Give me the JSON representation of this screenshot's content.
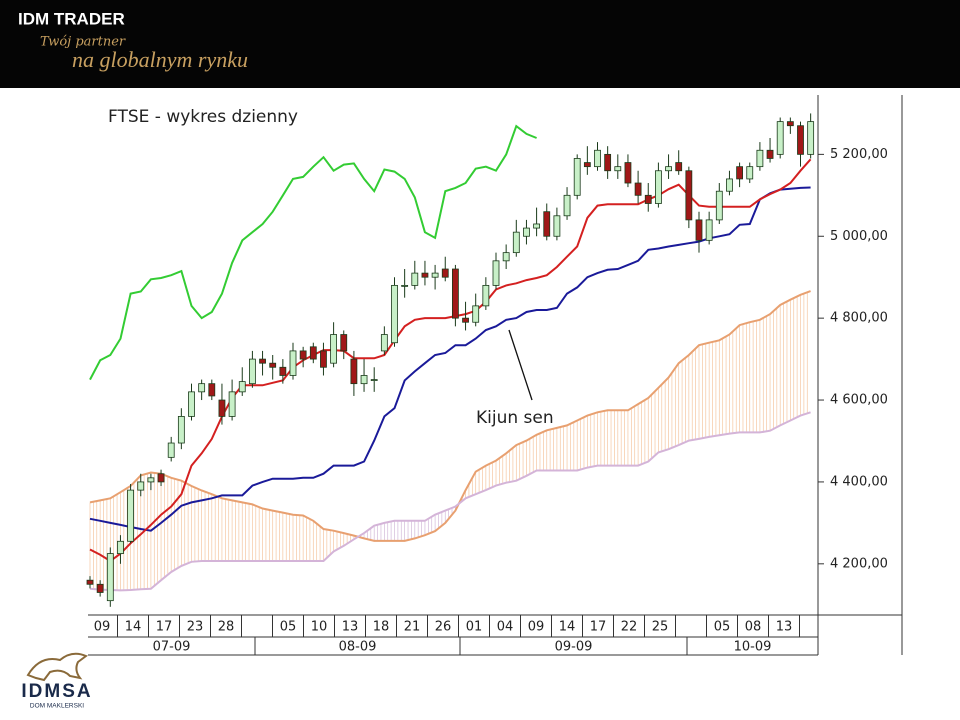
{
  "header": {
    "brand": "IDM TRADER",
    "tagline_1": "Twój partner",
    "tagline_2": "na globalnym rynku"
  },
  "footer": {
    "logo": "IDMSA",
    "logo_sub": "DOM MAKLERSKI"
  },
  "chart_data": {
    "type": "candlestick",
    "title": "FTSE - wykres dzienny",
    "annotation": "Kijun sen",
    "ylim": [
      4075,
      5345
    ],
    "yticks": [
      {
        "value": 4200,
        "label": "4 200,00"
      },
      {
        "value": 4400,
        "label": "4 400,00"
      },
      {
        "value": 4600,
        "label": "4 600,00"
      },
      {
        "value": 4800,
        "label": "4 800,00"
      },
      {
        "value": 5000,
        "label": "5 000,00"
      },
      {
        "value": 5200,
        "label": "5 200,00"
      }
    ],
    "xtick_labels": [
      "09",
      "14",
      "17",
      "23",
      "28",
      null,
      "05",
      "10",
      "13",
      "18",
      "21",
      "26",
      "01",
      "04",
      "09",
      "14",
      "17",
      "22",
      "25",
      null,
      "05",
      "08",
      "13"
    ],
    "month_labels": [
      "07-09",
      "08-09",
      "09-09",
      "10-09"
    ],
    "up_color": "#c8f0c8",
    "down_color": "#a01818",
    "candle_outline": "#1a3a1a",
    "candles": [
      [
        4160,
        4170,
        4140,
        4150
      ],
      [
        4150,
        4160,
        4120,
        4130
      ],
      [
        4110,
        4240,
        4095,
        4225
      ],
      [
        4225,
        4270,
        4200,
        4255
      ],
      [
        4255,
        4395,
        4250,
        4380
      ],
      [
        4380,
        4420,
        4365,
        4400
      ],
      [
        4400,
        4420,
        4380,
        4410
      ],
      [
        4420,
        4430,
        4390,
        4400
      ],
      [
        4460,
        4510,
        4450,
        4495
      ],
      [
        4495,
        4580,
        4480,
        4560
      ],
      [
        4560,
        4640,
        4550,
        4620
      ],
      [
        4620,
        4650,
        4600,
        4640
      ],
      [
        4640,
        4650,
        4600,
        4610
      ],
      [
        4600,
        4640,
        4540,
        4560
      ],
      [
        4560,
        4650,
        4550,
        4620
      ],
      [
        4620,
        4680,
        4610,
        4645
      ],
      [
        4640,
        4720,
        4630,
        4700
      ],
      [
        4700,
        4720,
        4660,
        4690
      ],
      [
        4690,
        4710,
        4650,
        4680
      ],
      [
        4680,
        4700,
        4640,
        4660
      ],
      [
        4660,
        4740,
        4650,
        4720
      ],
      [
        4720,
        4730,
        4680,
        4700
      ],
      [
        4730,
        4740,
        4690,
        4700
      ],
      [
        4720,
        4740,
        4660,
        4680
      ],
      [
        4690,
        4790,
        4680,
        4760
      ],
      [
        4760,
        4770,
        4700,
        4720
      ],
      [
        4700,
        4720,
        4610,
        4640
      ],
      [
        4640,
        4700,
        4620,
        4660
      ],
      [
        4650,
        4680,
        4620,
        4650
      ],
      [
        4720,
        4780,
        4710,
        4760
      ],
      [
        4740,
        4900,
        4730,
        4880
      ],
      [
        4880,
        4920,
        4850,
        4880
      ],
      [
        4880,
        4940,
        4870,
        4910
      ],
      [
        4910,
        4940,
        4880,
        4900
      ],
      [
        4900,
        4930,
        4870,
        4910
      ],
      [
        4920,
        4950,
        4890,
        4900
      ],
      [
        4920,
        4930,
        4780,
        4800
      ],
      [
        4800,
        4840,
        4770,
        4790
      ],
      [
        4790,
        4860,
        4780,
        4830
      ],
      [
        4830,
        4900,
        4820,
        4880
      ],
      [
        4880,
        4960,
        4870,
        4940
      ],
      [
        4940,
        4980,
        4920,
        4960
      ],
      [
        4960,
        5040,
        4950,
        5010
      ],
      [
        5000,
        5040,
        4980,
        5020
      ],
      [
        5020,
        5070,
        5000,
        5030
      ],
      [
        5060,
        5080,
        4990,
        5000
      ],
      [
        5000,
        5070,
        4990,
        5050
      ],
      [
        5050,
        5120,
        5040,
        5100
      ],
      [
        5100,
        5200,
        5090,
        5190
      ],
      [
        5180,
        5220,
        5150,
        5170
      ],
      [
        5170,
        5230,
        5160,
        5210
      ],
      [
        5200,
        5220,
        5140,
        5160
      ],
      [
        5160,
        5200,
        5140,
        5170
      ],
      [
        5180,
        5200,
        5120,
        5130
      ],
      [
        5130,
        5160,
        5080,
        5100
      ],
      [
        5100,
        5130,
        5060,
        5080
      ],
      [
        5080,
        5180,
        5070,
        5160
      ],
      [
        5160,
        5200,
        5140,
        5170
      ],
      [
        5180,
        5210,
        5150,
        5160
      ],
      [
        5160,
        5170,
        5020,
        5040
      ],
      [
        5040,
        5060,
        4960,
        4990
      ],
      [
        4990,
        5060,
        4980,
        5040
      ],
      [
        5040,
        5130,
        5030,
        5110
      ],
      [
        5110,
        5160,
        5100,
        5140
      ],
      [
        5170,
        5180,
        5120,
        5140
      ],
      [
        5140,
        5180,
        5130,
        5170
      ],
      [
        5170,
        5230,
        5160,
        5210
      ],
      [
        5210,
        5240,
        5180,
        5190
      ],
      [
        5200,
        5290,
        5190,
        5280
      ],
      [
        5280,
        5290,
        5250,
        5270
      ],
      [
        5270,
        5280,
        5170,
        5200
      ],
      [
        5200,
        5300,
        5190,
        5280
      ]
    ],
    "lines": [
      {
        "color": "#e8a070",
        "width": 2,
        "values": [
          4350,
          4355,
          4360,
          4375,
          4390,
          4416,
          4423,
          4420,
          4410,
          4403,
          4390,
          4379,
          4370,
          4360,
          4355,
          4350,
          4345,
          4335,
          4330,
          4325,
          4320,
          4318,
          4305,
          4285,
          4281,
          4275,
          4269,
          4262,
          4256,
          4256,
          4256,
          4256,
          4262,
          4270,
          4280,
          4300,
          4330,
          4380,
          4425,
          4440,
          4452,
          4470,
          4490,
          4501,
          4515,
          4526,
          4532,
          4538,
          4550,
          4562,
          4570,
          4575,
          4575,
          4575,
          4590,
          4605,
          4630,
          4655,
          4690,
          4710,
          4734,
          4740,
          4746,
          4760,
          4783,
          4790,
          4796,
          4810,
          4832,
          4845,
          4857,
          4866
        ]
      },
      {
        "color": "#d4b4d8",
        "width": 2,
        "values": [
          4139,
          4137,
          4136,
          4135,
          4136,
          4138,
          4139,
          4160,
          4180,
          4195,
          4205,
          4207,
          4207,
          4207,
          4207,
          4207,
          4207,
          4207,
          4207,
          4207,
          4207,
          4207,
          4207,
          4207,
          4230,
          4244,
          4260,
          4275,
          4293,
          4300,
          4305,
          4305,
          4305,
          4305,
          4320,
          4330,
          4340,
          4360,
          4370,
          4380,
          4391,
          4398,
          4403,
          4415,
          4428,
          4428,
          4428,
          4428,
          4428,
          4435,
          4440,
          4440,
          4440,
          4440,
          4440,
          4450,
          4472,
          4480,
          4490,
          4501,
          4505,
          4510,
          4514,
          4518,
          4521,
          4521,
          4521,
          4525,
          4538,
          4550,
          4562,
          4570
        ]
      },
      {
        "color": "#1a1a99",
        "width": 2,
        "values": [
          4310,
          4305,
          4300,
          4295,
          4290,
          4285,
          4281,
          4300,
          4320,
          4342,
          4350,
          4355,
          4360,
          4367,
          4367,
          4367,
          4391,
          4400,
          4408,
          4408,
          4408,
          4410,
          4410,
          4420,
          4440,
          4440,
          4440,
          4450,
          4501,
          4560,
          4580,
          4648,
          4670,
          4690,
          4710,
          4715,
          4734,
          4734,
          4750,
          4771,
          4780,
          4796,
          4800,
          4815,
          4820,
          4820,
          4825,
          4860,
          4875,
          4900,
          4910,
          4918,
          4920,
          4930,
          4940,
          4967,
          4970,
          4975,
          4979,
          4983,
          4987,
          4995,
          5000,
          5005,
          5028,
          5030,
          5090,
          5105,
          5114,
          5116,
          5118,
          5119
        ]
      },
      {
        "color": "#d42020",
        "width": 2,
        "values": [
          4235,
          4222,
          4207,
          4225,
          4250,
          4272,
          4295,
          4320,
          4340,
          4370,
          4440,
          4470,
          4505,
          4560,
          4605,
          4636,
          4636,
          4636,
          4642,
          4648,
          4680,
          4697,
          4710,
          4722,
          4722,
          4720,
          4702,
          4702,
          4702,
          4710,
          4746,
          4780,
          4796,
          4800,
          4800,
          4800,
          4805,
          4810,
          4818,
          4840,
          4870,
          4880,
          4885,
          4893,
          4898,
          4905,
          4925,
          4950,
          4975,
          5045,
          5075,
          5078,
          5078,
          5078,
          5078,
          5090,
          5100,
          5115,
          5126,
          5100,
          5075,
          5072,
          5072,
          5072,
          5072,
          5072,
          5090,
          5103,
          5114,
          5130,
          5160,
          5188
        ]
      },
      {
        "color": "#33cc33",
        "width": 2,
        "values": [
          4650,
          4697,
          4710,
          4750,
          4860,
          4865,
          4895,
          4898,
          4905,
          4915,
          4830,
          4800,
          4815,
          4860,
          4935,
          4990,
          5010,
          5030,
          5060,
          5100,
          5140,
          5145,
          5170,
          5193,
          5160,
          5175,
          5178,
          5140,
          5110,
          5163,
          5158,
          5140,
          5095,
          5010,
          4996,
          5110,
          5118,
          5130,
          5165,
          5170,
          5160,
          5200,
          5269,
          5250,
          5240,
          null,
          null,
          null,
          null,
          null,
          null,
          null,
          null,
          null,
          null,
          null,
          null,
          null,
          null,
          null,
          null,
          null,
          null,
          null,
          null,
          null,
          null,
          null,
          null,
          null,
          null,
          null
        ]
      }
    ]
  }
}
